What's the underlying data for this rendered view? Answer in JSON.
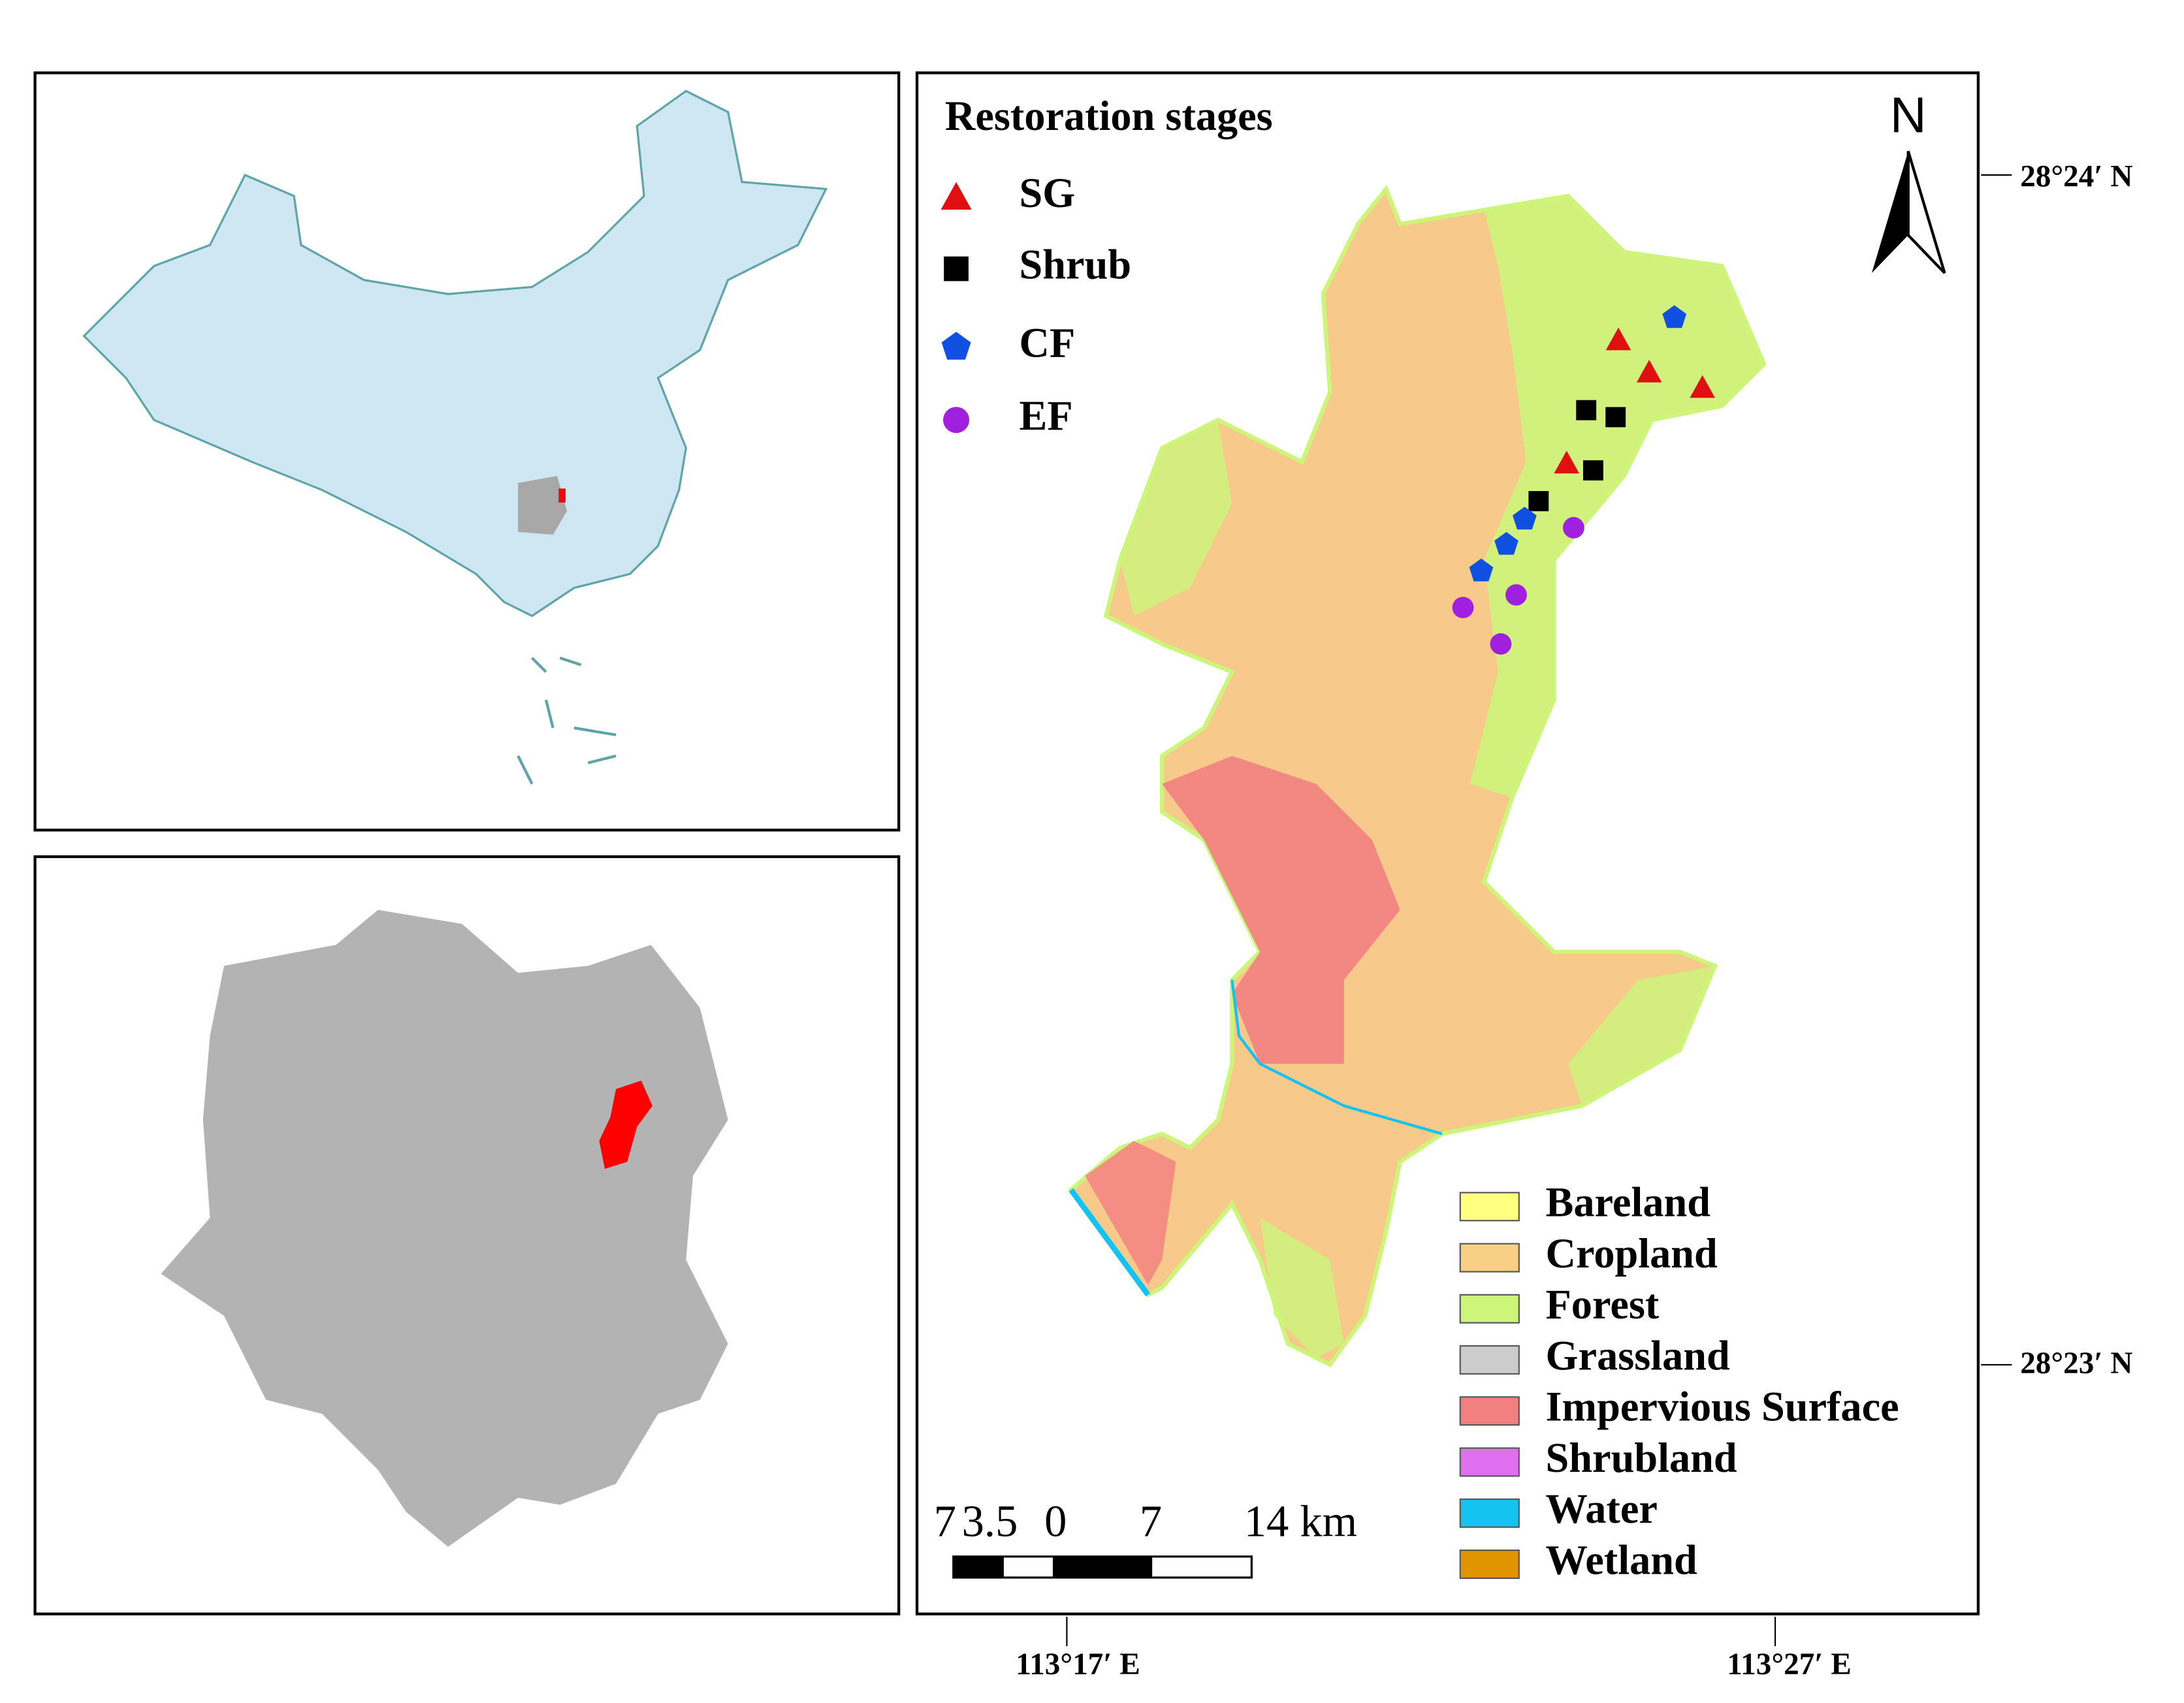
{
  "restoration_legend": {
    "title": "Restoration stages",
    "items": [
      {
        "label": "SG",
        "color": "#e01010"
      },
      {
        "label": "Shrub",
        "color": "#000000"
      },
      {
        "label": "CF",
        "color": "#1050e0"
      },
      {
        "label": "EF",
        "color": "#a020e0"
      }
    ]
  },
  "landcover_legend": {
    "items": [
      {
        "label": "Bareland",
        "color": "#ffff80"
      },
      {
        "label": "Cropland",
        "color": "#f7cf85"
      },
      {
        "label": "Forest",
        "color": "#ccf57a"
      },
      {
        "label": "Grassland",
        "color": "#cccccc"
      },
      {
        "label": "Impervious Surface",
        "color": "#f28080"
      },
      {
        "label": "Shrubland",
        "color": "#e070f0"
      },
      {
        "label": "Water",
        "color": "#14c3f0"
      },
      {
        "label": "Wetland",
        "color": "#e09400"
      }
    ]
  },
  "north_label": "N",
  "scale_bar": {
    "labels": [
      "7",
      "3.5",
      "0",
      "7",
      "14 km"
    ]
  },
  "latitude_labels": [
    "28°24′ N",
    "28°23′ N"
  ],
  "longitude_labels": [
    "113°17′ E",
    "113°27′ E"
  ]
}
